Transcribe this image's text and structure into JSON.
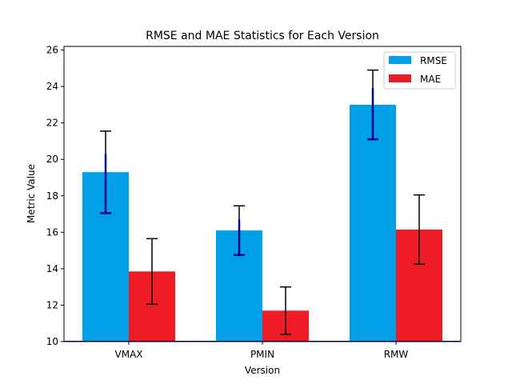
{
  "chart_data": {
    "type": "bar",
    "title": "RMSE and MAE Statistics for Each Version",
    "xlabel": "Version",
    "ylabel": "Metric Value",
    "categories": [
      "VMAX",
      "PMIN",
      "RMW"
    ],
    "ylim": [
      10,
      26.2
    ],
    "yticks": [
      10,
      12,
      14,
      16,
      18,
      20,
      22,
      24,
      26
    ],
    "legend_position": "top-right",
    "series": [
      {
        "name": "RMSE",
        "color": "#009fe6",
        "values": [
          19.3,
          16.1,
          23.0
        ],
        "errors": [
          2.25,
          1.35,
          1.9
        ],
        "error_color": "#000000",
        "inner_error_color": "#00008b",
        "inner_errors": [
          1.0,
          0.6,
          0.9
        ]
      },
      {
        "name": "MAE",
        "color": "#ee1c25",
        "values": [
          13.85,
          11.7,
          16.15
        ],
        "errors": [
          1.8,
          1.3,
          1.9
        ],
        "error_color": "#000000"
      }
    ]
  }
}
